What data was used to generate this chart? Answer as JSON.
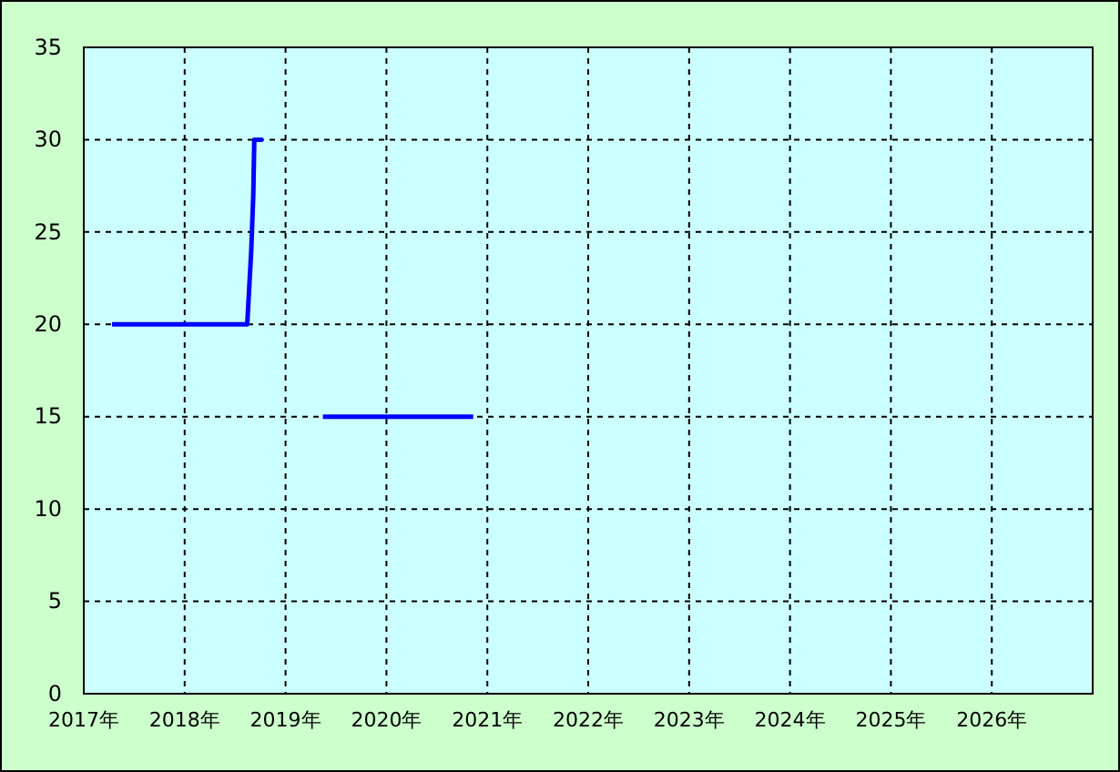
{
  "chart_data": {
    "type": "line",
    "x": [
      2017.28,
      2018.62,
      2018.64,
      2018.66,
      2018.68,
      2018.69,
      2018.775,
      2019.0,
      2019.37,
      2020.86
    ],
    "series": [
      {
        "color": "#0000ff",
        "values": [
          20,
          20,
          22,
          24,
          27,
          30,
          30,
          null,
          15,
          15
        ]
      }
    ],
    "xlim": [
      2017,
      2027
    ],
    "xticks": [
      {
        "value": 2017,
        "label": "2017年"
      },
      {
        "value": 2018,
        "label": "2018年"
      },
      {
        "value": 2019,
        "label": "2019年"
      },
      {
        "value": 2020,
        "label": "2020年"
      },
      {
        "value": 2021,
        "label": "2021年"
      },
      {
        "value": 2022,
        "label": "2022年"
      },
      {
        "value": 2023,
        "label": "2023年"
      },
      {
        "value": 2024,
        "label": "2024年"
      },
      {
        "value": 2025,
        "label": "2025年"
      },
      {
        "value": 2026,
        "label": "2026年"
      }
    ],
    "ylim": [
      0,
      35
    ],
    "yticks": [
      0,
      5,
      10,
      15,
      20,
      25,
      30,
      35
    ],
    "grid": true,
    "marker": "none",
    "line_style": "solid"
  }
}
